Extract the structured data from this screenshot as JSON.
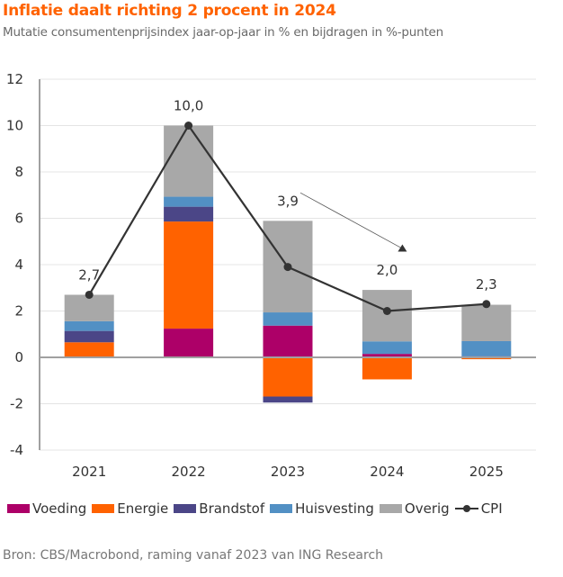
{
  "title": "Inflatie daalt richting 2 procent in 2024",
  "subtitle": "Mutatie consumentenprijsindex jaar-op-jaar in % en bijdragen in %-punten",
  "source": "Bron: CBS/Macrobond, raming vanaf 2023 van ING Research",
  "chart_data": {
    "type": "bar",
    "stacked": true,
    "title": "Inflatie daalt richting 2 procent in 2024",
    "subtitle": "Mutatie consumentenprijsindex jaar-op-jaar in % en bijdragen in %-punten",
    "xlabel": "",
    "ylabel": "",
    "categories": [
      "2021",
      "2022",
      "2023",
      "2024",
      "2025"
    ],
    "ylim": [
      -4,
      12
    ],
    "yticks": [
      12,
      10,
      8,
      6,
      4,
      2,
      0,
      -2,
      -4
    ],
    "ytick_labels": [
      "12",
      "10",
      "8",
      "6",
      "4",
      "2",
      "0",
      "-2",
      "-4"
    ],
    "grid": true,
    "legend_position": "bottom",
    "series": [
      {
        "name": "Voeding",
        "color": "#ad0068",
        "values": [
          0.0,
          1.24,
          1.37,
          0.15,
          0.0
        ]
      },
      {
        "name": "Energie",
        "color": "#ff6200",
        "values": [
          0.65,
          4.62,
          -1.69,
          -0.95,
          -0.08
        ]
      },
      {
        "name": "Brandstof",
        "color": "#4b4687",
        "values": [
          0.49,
          0.64,
          -0.26,
          0.0,
          0.05
        ]
      },
      {
        "name": "Huisvesting",
        "color": "#5290c4",
        "values": [
          0.42,
          0.43,
          0.57,
          0.54,
          0.65
        ]
      },
      {
        "name": "Overig",
        "color": "#a8a8a8",
        "values": [
          1.14,
          3.07,
          3.95,
          2.22,
          1.57
        ]
      }
    ],
    "line_series": {
      "name": "CPI",
      "color": "#333333",
      "values": [
        2.7,
        10.0,
        3.9,
        2.0,
        2.3
      ]
    },
    "data_labels": [
      "2,7",
      "10,0",
      "3,9",
      "2,0",
      "2,3"
    ],
    "annotations": [
      {
        "type": "arrow",
        "description": "downward trend arrow from 2023 towards 2024"
      }
    ]
  }
}
